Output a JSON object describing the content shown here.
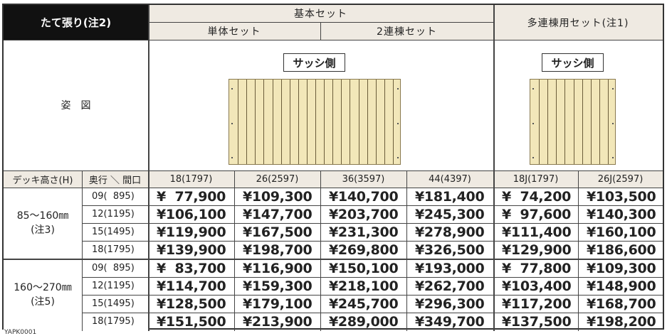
{
  "header": {
    "title": "たて張り(注2)",
    "basic_set": "基本セット",
    "single_set": "単体セット",
    "double_set": "2連棟セット",
    "multi_set": "多連棟用セット(注1)"
  },
  "figure": {
    "label": "姿　図",
    "sash_label": "サッシ側"
  },
  "columns": {
    "height_label": "デッキ高さ(H)",
    "depth_label": "奥行 ＼ 間口",
    "widths": [
      "18(1797)",
      "26(2597)",
      "36(3597)",
      "44(4397)",
      "18J(1797)",
      "26J(2597)"
    ]
  },
  "groups": [
    {
      "height_line1": "85〜160㎜",
      "height_line2": "(注3)",
      "rows": [
        {
          "depth": "09(  895)",
          "prices": [
            "¥  77,900",
            "¥109,300",
            "¥140,700",
            "¥181,400",
            "¥  74,200",
            "¥103,500"
          ]
        },
        {
          "depth": "12(1195)",
          "prices": [
            "¥106,100",
            "¥147,700",
            "¥203,700",
            "¥245,300",
            "¥  97,600",
            "¥140,300"
          ]
        },
        {
          "depth": "15(1495)",
          "prices": [
            "¥119,900",
            "¥167,500",
            "¥231,300",
            "¥278,900",
            "¥111,400",
            "¥160,100"
          ]
        },
        {
          "depth": "18(1795)",
          "prices": [
            "¥139,900",
            "¥198,700",
            "¥269,800",
            "¥326,500",
            "¥129,900",
            "¥186,600"
          ]
        }
      ]
    },
    {
      "height_line1": "160〜270㎜",
      "height_line2": "(注5)",
      "rows": [
        {
          "depth": "09(  895)",
          "prices": [
            "¥  83,700",
            "¥116,900",
            "¥150,100",
            "¥193,000",
            "¥  77,800",
            "¥109,300"
          ]
        },
        {
          "depth": "12(1195)",
          "prices": [
            "¥114,700",
            "¥159,300",
            "¥218,100",
            "¥262,700",
            "¥103,400",
            "¥148,900"
          ]
        },
        {
          "depth": "15(1495)",
          "prices": [
            "¥128,500",
            "¥179,100",
            "¥245,700",
            "¥296,300",
            "¥117,200",
            "¥168,700"
          ]
        },
        {
          "depth": "18(1795)",
          "prices": [
            "¥151,500",
            "¥213,900",
            "¥289,000",
            "¥349,700",
            "¥137,500",
            "¥198,200"
          ]
        }
      ]
    }
  ],
  "footer_code": "YAPK0001"
}
